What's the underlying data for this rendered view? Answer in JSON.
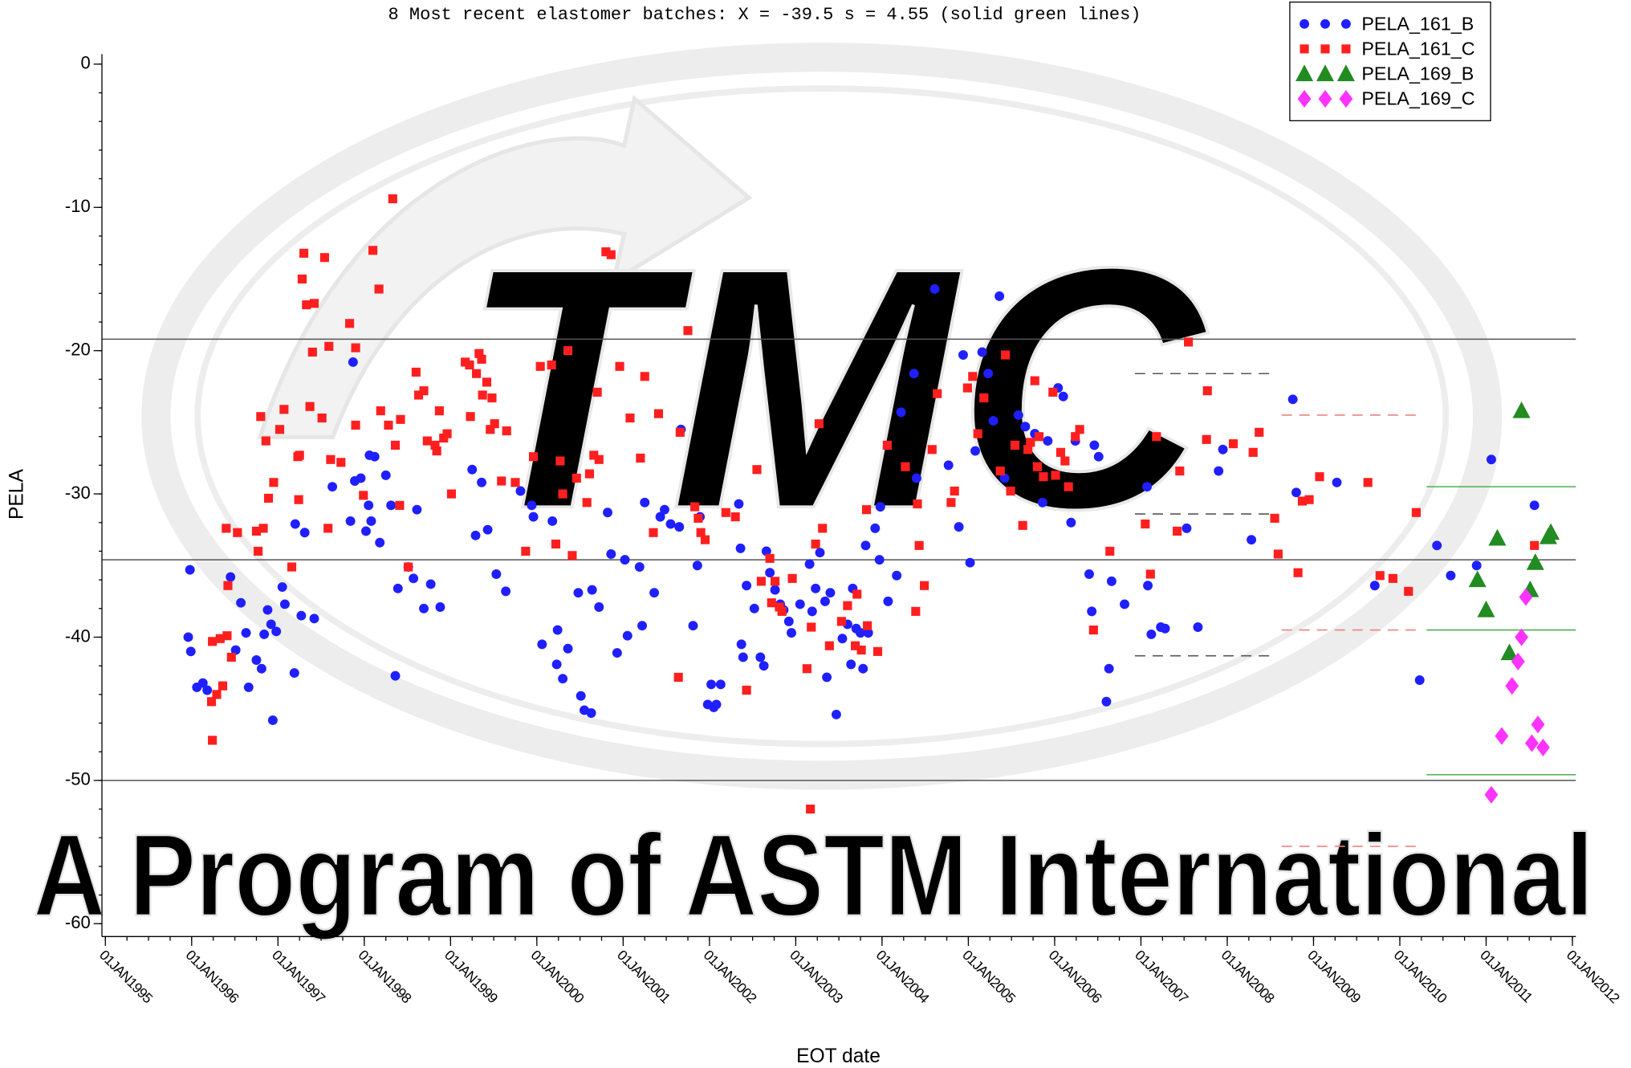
{
  "chart_data": {
    "type": "scatter",
    "title": "8 Most recent elastomer batches: X =  -39.5  s =  4.55 (solid green lines)",
    "x_label": "EOT date",
    "y_label": "PELA",
    "watermark": "A Program of ASTM International",
    "logo_text": "TMC",
    "xlim": [
      1994.96,
      2012.04
    ],
    "ylim": [
      -60.9,
      0.7
    ],
    "xticks": [
      {
        "value": 1995,
        "label": "01JAN1995"
      },
      {
        "value": 1996,
        "label": "01JAN1996"
      },
      {
        "value": 1997,
        "label": "01JAN1997"
      },
      {
        "value": 1998,
        "label": "01JAN1998"
      },
      {
        "value": 1999,
        "label": "01JAN1999"
      },
      {
        "value": 2000,
        "label": "01JAN2000"
      },
      {
        "value": 2001,
        "label": "01JAN2001"
      },
      {
        "value": 2002,
        "label": "01JAN2002"
      },
      {
        "value": 2003,
        "label": "01JAN2003"
      },
      {
        "value": 2004,
        "label": "01JAN2004"
      },
      {
        "value": 2005,
        "label": "01JAN2005"
      },
      {
        "value": 2006,
        "label": "01JAN2006"
      },
      {
        "value": 2007,
        "label": "01JAN2007"
      },
      {
        "value": 2008,
        "label": "01JAN2008"
      },
      {
        "value": 2009,
        "label": "01JAN2009"
      },
      {
        "value": 2010,
        "label": "01JAN2010"
      },
      {
        "value": 2011,
        "label": "01JAN2011"
      },
      {
        "value": 2012,
        "label": "01JAN2012"
      }
    ],
    "yticks": [
      0,
      -10,
      -20,
      -30,
      -40,
      -50,
      -60
    ],
    "legend": "upper right",
    "reference_lines": [
      {
        "y": -19.2,
        "color": "#555555",
        "style": "solid"
      },
      {
        "y": -34.6,
        "color": "#555555",
        "style": "solid"
      },
      {
        "y": -50.0,
        "color": "#555555",
        "style": "solid"
      },
      {
        "y": -21.6,
        "x": [
          2006.93,
          2008.54
        ],
        "color": "#555555",
        "style": "dashed"
      },
      {
        "y": -31.4,
        "x": [
          2006.93,
          2008.54
        ],
        "color": "#555555",
        "style": "dashed"
      },
      {
        "y": -41.3,
        "x": [
          2006.93,
          2008.54
        ],
        "color": "#555555",
        "style": "dashed"
      },
      {
        "y": -24.5,
        "x": [
          2008.63,
          2010.23
        ],
        "color": "#f08080",
        "style": "dashed"
      },
      {
        "y": -39.5,
        "x": [
          2008.63,
          2010.23
        ],
        "color": "#f08080",
        "style": "dashed"
      },
      {
        "y": -54.6,
        "x": [
          2008.63,
          2010.23
        ],
        "color": "#f08080",
        "style": "dashed"
      },
      {
        "y": -29.5,
        "x": [
          2010.31,
          2012.04
        ],
        "color": "#4caf50",
        "style": "solid"
      },
      {
        "y": -39.5,
        "x": [
          2010.31,
          2012.04
        ],
        "color": "#4caf50",
        "style": "solid"
      },
      {
        "y": -49.6,
        "x": [
          2010.31,
          2012.04
        ],
        "color": "#4caf50",
        "style": "solid"
      }
    ],
    "series": [
      {
        "name": "PELA_161_B",
        "color": "#1f1fff",
        "marker": "circle",
        "x": [
          1995.98,
          1995.96,
          1995.99,
          1996.06,
          1996.13,
          1996.18,
          1996.45,
          1996.51,
          1996.57,
          1996.63,
          1996.66,
          1996.75,
          1996.81,
          1996.84,
          1996.88,
          1996.92,
          1996.94,
          1996.98,
          1997.05,
          1997.08,
          1997.19,
          1997.2,
          1997.27,
          1997.31,
          1997.42,
          1997.63,
          1997.84,
          1997.87,
          1997.89,
          1997.96,
          1998.02,
          1998.05,
          1998.06,
          1998.08,
          1998.12,
          1998.18,
          1998.25,
          1998.31,
          1998.36,
          1998.39,
          1998.51,
          1998.57,
          1998.61,
          1998.69,
          1998.77,
          1998.88,
          1999.25,
          1999.29,
          1999.36,
          1999.43,
          1999.53,
          1999.64,
          1999.81,
          1999.94,
          1999.96,
          2000.06,
          2000.18,
          2000.23,
          2000.24,
          2000.3,
          2000.36,
          2000.48,
          2000.51,
          2000.55,
          2000.63,
          2000.64,
          2000.72,
          2000.82,
          2000.86,
          2000.93,
          2001.02,
          2001.05,
          2001.19,
          2001.22,
          2001.25,
          2001.36,
          2001.43,
          2001.48,
          2001.55,
          2001.65,
          2001.67,
          2001.81,
          2001.86,
          2001.89,
          2001.98,
          2002.02,
          2002.05,
          2002.08,
          2002.13,
          2002.34,
          2002.36,
          2002.37,
          2002.39,
          2002.43,
          2002.52,
          2002.59,
          2002.63,
          2002.66,
          2002.7,
          2002.76,
          2002.82,
          2002.86,
          2002.92,
          2002.95,
          2003.05,
          2003.16,
          2003.19,
          2003.23,
          2003.28,
          2003.34,
          2003.36,
          2003.4,
          2003.47,
          2003.54,
          2003.6,
          2003.64,
          2003.66,
          2003.7,
          2003.75,
          2003.78,
          2003.81,
          2003.84,
          2003.92,
          2003.98,
          2003.97,
          2004.07,
          2004.17,
          2004.22,
          2004.37,
          2004.4,
          2004.61,
          2004.77,
          2004.89,
          2004.94,
          2005.02,
          2005.08,
          2005.16,
          2005.23,
          2005.29,
          2005.36,
          2005.42,
          2005.58,
          2005.66,
          2005.77,
          2005.86,
          2005.92,
          2006.04,
          2006.1,
          2006.19,
          2006.24,
          2006.4,
          2006.43,
          2006.46,
          2006.51,
          2006.6,
          2006.63,
          2006.66,
          2006.81,
          2007.07,
          2007.08,
          2007.12,
          2007.23,
          2007.28,
          2007.53,
          2007.66,
          2007.9,
          2007.95,
          2008.28,
          2008.76,
          2008.8,
          2009.27,
          2009.71,
          2010.23,
          2010.43,
          2010.59,
          2010.89,
          2011.06,
          2011.56
        ],
        "values": [
          -35.3,
          -40.0,
          -41.0,
          -43.5,
          -43.2,
          -43.7,
          -35.8,
          -40.9,
          -37.6,
          -39.7,
          -43.5,
          -41.6,
          -42.2,
          -39.8,
          -38.1,
          -39.1,
          -45.8,
          -39.6,
          -36.5,
          -37.7,
          -42.5,
          -32.1,
          -38.5,
          -32.7,
          -38.7,
          -29.5,
          -31.9,
          -20.8,
          -29.1,
          -28.9,
          -32.6,
          -30.8,
          -27.3,
          -31.9,
          -27.4,
          -33.4,
          -28.7,
          -30.8,
          -42.7,
          -36.6,
          -35.1,
          -35.9,
          -31.1,
          -38.0,
          -36.3,
          -37.9,
          -28.3,
          -32.9,
          -29.2,
          -32.5,
          -35.6,
          -36.8,
          -29.8,
          -30.8,
          -31.6,
          -40.5,
          -31.9,
          -41.9,
          -39.5,
          -42.9,
          -40.8,
          -36.9,
          -44.1,
          -45.1,
          -45.3,
          -36.7,
          -37.9,
          -31.3,
          -34.2,
          -41.1,
          -34.6,
          -39.9,
          -35.1,
          -39.2,
          -30.6,
          -36.9,
          -31.6,
          -31.1,
          -32.1,
          -32.3,
          -25.5,
          -39.2,
          -35.0,
          -31.6,
          -44.7,
          -43.3,
          -44.9,
          -44.7,
          -43.3,
          -30.7,
          -33.8,
          -40.5,
          -41.4,
          -36.4,
          -38.0,
          -41.4,
          -42.0,
          -34.0,
          -35.5,
          -36.7,
          -37.7,
          -38.1,
          -38.9,
          -39.7,
          -37.7,
          -34.9,
          -38.2,
          -36.6,
          -34.1,
          -37.5,
          -42.8,
          -36.9,
          -45.4,
          -40.1,
          -39.1,
          -41.9,
          -36.6,
          -39.4,
          -39.7,
          -42.2,
          -33.6,
          -39.7,
          -32.4,
          -30.9,
          -34.6,
          -37.5,
          -35.7,
          -24.3,
          -21.6,
          -28.9,
          -15.7,
          -28.0,
          -32.3,
          -20.3,
          -34.8,
          -27.0,
          -20.1,
          -21.6,
          -24.9,
          -16.2,
          -28.9,
          -24.5,
          -25.3,
          -25.8,
          -30.6,
          -26.3,
          -22.6,
          -23.2,
          -32.0,
          -26.3,
          -35.6,
          -38.2,
          -26.6,
          -27.4,
          -44.5,
          -42.2,
          -36.1,
          -37.7,
          -29.5,
          -36.4,
          -39.8,
          -39.3,
          -39.4,
          -32.4,
          -39.3,
          -28.4,
          -26.9,
          -33.2,
          -23.4,
          -29.9,
          -29.2,
          -36.4,
          -43.0,
          -33.6,
          -35.7,
          -35.0,
          -27.6,
          -30.8
        ]
      },
      {
        "name": "PELA_161_C",
        "color": "#ff1f1f",
        "marker": "square",
        "x": [
          1996.24,
          1996.23,
          1996.29,
          1996.24,
          1996.33,
          1996.36,
          1996.41,
          1996.4,
          1996.42,
          1996.46,
          1996.53,
          1996.75,
          1996.77,
          1996.8,
          1996.83,
          1996.86,
          1996.89,
          1996.95,
          1997.02,
          1997.07,
          1997.16,
          1997.23,
          1997.24,
          1997.25,
          1997.28,
          1997.3,
          1997.33,
          1997.37,
          1997.4,
          1997.42,
          1997.51,
          1997.54,
          1997.58,
          1997.59,
          1997.61,
          1997.73,
          1997.83,
          1997.9,
          1997.9,
          1997.99,
          1998.1,
          1998.17,
          1998.19,
          1998.28,
          1998.33,
          1998.36,
          1998.41,
          1998.42,
          1998.51,
          1998.6,
          1998.63,
          1998.69,
          1998.73,
          1998.82,
          1998.84,
          1998.87,
          1998.92,
          1998.96,
          1999.01,
          1999.17,
          1999.22,
          1999.23,
          1999.3,
          1999.33,
          1999.36,
          1999.37,
          1999.42,
          1999.46,
          1999.48,
          1999.51,
          1999.59,
          1999.65,
          1999.75,
          1999.87,
          1999.96,
          2000.04,
          2000.17,
          2000.22,
          2000.27,
          2000.3,
          2000.36,
          2000.41,
          2000.46,
          2000.58,
          2000.61,
          2000.66,
          2000.7,
          2000.72,
          2000.8,
          2000.86,
          2000.96,
          2001.08,
          2001.2,
          2001.25,
          2001.35,
          2001.41,
          2001.64,
          2001.66,
          2001.75,
          2001.83,
          2001.87,
          2001.9,
          2001.95,
          2002.19,
          2002.3,
          2002.43,
          2002.55,
          2002.6,
          2002.7,
          2002.72,
          2002.76,
          2002.81,
          2002.84,
          2002.96,
          2003.13,
          2003.17,
          2003.18,
          2003.23,
          2003.27,
          2003.31,
          2003.39,
          2003.53,
          2003.6,
          2003.69,
          2003.71,
          2003.76,
          2003.82,
          2003.83,
          2003.95,
          2004.06,
          2004.27,
          2004.39,
          2004.41,
          2004.43,
          2004.49,
          2004.58,
          2004.64,
          2004.8,
          2004.84,
          2004.99,
          2005.05,
          2005.11,
          2005.18,
          2005.37,
          2005.43,
          2005.49,
          2005.54,
          2005.63,
          2005.69,
          2005.72,
          2005.77,
          2005.8,
          2005.82,
          2005.87,
          2005.98,
          2006.01,
          2006.07,
          2006.12,
          2006.16,
          2006.24,
          2006.29,
          2006.45,
          2006.64,
          2007.05,
          2007.11,
          2007.18,
          2007.42,
          2007.45,
          2007.55,
          2007.77,
          2007.76,
          2008.07,
          2008.3,
          2008.37,
          2008.55,
          2008.59,
          2008.82,
          2008.87,
          2008.95,
          2009.07,
          2009.63,
          2009.77,
          2009.92,
          2010.1,
          2010.19,
          2011.56
        ],
        "values": [
          -47.2,
          -44.5,
          -44.0,
          -40.3,
          -40.1,
          -43.4,
          -39.9,
          -32.4,
          -36.4,
          -41.4,
          -32.7,
          -32.6,
          -34.0,
          -24.6,
          -32.4,
          -26.3,
          -30.3,
          -29.2,
          -25.5,
          -24.1,
          -35.1,
          -27.4,
          -30.4,
          -27.3,
          -15.0,
          -13.2,
          -16.8,
          -23.9,
          -20.1,
          -16.7,
          -24.7,
          -13.5,
          -32.4,
          -19.7,
          -27.6,
          -27.8,
          -18.1,
          -19.8,
          -25.2,
          -30.1,
          -13.0,
          -15.7,
          -24.2,
          -25.2,
          -9.4,
          -26.6,
          -30.8,
          -24.8,
          -35.1,
          -21.5,
          -23.1,
          -22.8,
          -26.3,
          -26.6,
          -27.0,
          -24.2,
          -26.1,
          -25.8,
          -30.0,
          -20.8,
          -21.0,
          -24.6,
          -21.6,
          -20.2,
          -20.6,
          -23.1,
          -22.2,
          -25.5,
          -23.3,
          -25.1,
          -29.1,
          -25.6,
          -29.2,
          -34.0,
          -27.4,
          -21.1,
          -21.0,
          -33.5,
          -27.7,
          -30.0,
          -20.0,
          -34.3,
          -28.9,
          -30.6,
          -28.6,
          -27.3,
          -22.9,
          -27.6,
          -13.1,
          -13.3,
          -21.1,
          -24.7,
          -27.5,
          -21.8,
          -32.7,
          -24.4,
          -42.8,
          -25.7,
          -18.6,
          -30.9,
          -31.7,
          -32.7,
          -33.2,
          -31.3,
          -31.6,
          -43.7,
          -28.3,
          -36.1,
          -34.5,
          -37.6,
          -36.1,
          -37.9,
          -38.2,
          -35.9,
          -42.2,
          -52.0,
          -39.3,
          -33.5,
          -25.1,
          -32.4,
          -40.6,
          -38.9,
          -37.8,
          -40.6,
          -37.0,
          -40.9,
          -31.1,
          -39.2,
          -41.0,
          -26.6,
          -28.1,
          -38.2,
          -30.7,
          -33.6,
          -36.4,
          -26.9,
          -23.0,
          -30.6,
          -29.8,
          -22.6,
          -21.8,
          -25.8,
          -23.3,
          -28.4,
          -20.3,
          -29.8,
          -26.6,
          -32.2,
          -26.9,
          -26.4,
          -22.1,
          -28.1,
          -26.0,
          -28.8,
          -22.9,
          -28.7,
          -27.1,
          -27.7,
          -29.5,
          -26.0,
          -25.5,
          -39.5,
          -34.0,
          -32.1,
          -35.6,
          -26.0,
          -32.6,
          -28.4,
          -19.4,
          -22.8,
          -26.2,
          -26.5,
          -27.1,
          -25.7,
          -31.7,
          -34.2,
          -35.5,
          -30.5,
          -30.4,
          -28.8,
          -29.2,
          -35.7,
          -35.9,
          -36.8,
          -31.3,
          -33.6
        ]
      },
      {
        "name": "PELA_169_B",
        "color": "#228b22",
        "marker": "triangle",
        "x": [
          2010.9,
          2011.0,
          2011.13,
          2011.27,
          2011.41,
          2011.51,
          2011.57,
          2011.72,
          2011.75
        ],
        "values": [
          -36.0,
          -38.1,
          -33.1,
          -41.1,
          -24.2,
          -36.7,
          -34.8,
          -33.0,
          -32.7
        ]
      },
      {
        "name": "PELA_169_C",
        "color": "#ff33ff",
        "marker": "diamond",
        "x": [
          2011.06,
          2011.18,
          2011.3,
          2011.37,
          2011.41,
          2011.46,
          2011.53,
          2011.6,
          2011.66
        ],
        "values": [
          -51.0,
          -46.9,
          -43.4,
          -41.7,
          -40.0,
          -37.2,
          -47.4,
          -46.1,
          -47.7
        ]
      }
    ]
  }
}
